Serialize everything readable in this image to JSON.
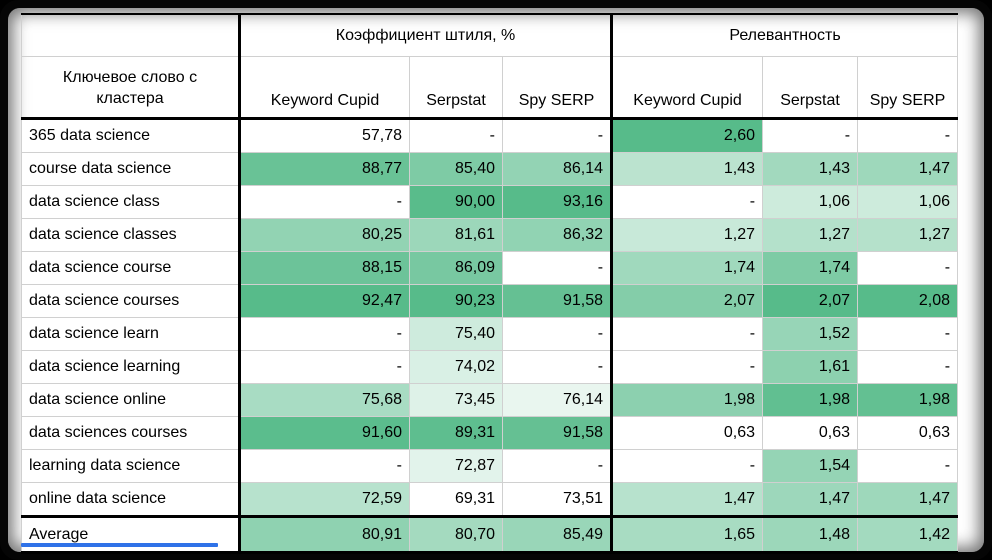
{
  "table": {
    "corner_header": "Ключевое слово с кластера",
    "groups": [
      {
        "title": "Коэффициент штиля, %",
        "columns": [
          "Keyword Cupid",
          "Serpstat",
          "Spy SERP"
        ]
      },
      {
        "title": "Релевантность",
        "columns": [
          "Keyword Cupid",
          "Serpstat",
          "Spy SERP"
        ]
      }
    ],
    "columns_flat": [
      "Keyword Cupid",
      "Serpstat",
      "Spy SERP",
      "Keyword Cupid",
      "Serpstat",
      "Spy SERP"
    ],
    "missing_placeholder": "-",
    "rows": [
      {
        "label": "365 data science",
        "values": [
          "57,78",
          "-",
          "-",
          "2,60",
          "-",
          "-"
        ]
      },
      {
        "label": "course data science",
        "values": [
          "88,77",
          "85,40",
          "86,14",
          "1,43",
          "1,43",
          "1,47"
        ]
      },
      {
        "label": "data science class",
        "values": [
          "-",
          "90,00",
          "93,16",
          "-",
          "1,06",
          "1,06"
        ]
      },
      {
        "label": "data science classes",
        "values": [
          "80,25",
          "81,61",
          "86,32",
          "1,27",
          "1,27",
          "1,27"
        ]
      },
      {
        "label": "data science course",
        "values": [
          "88,15",
          "86,09",
          "-",
          "1,74",
          "1,74",
          "-"
        ]
      },
      {
        "label": "data science courses",
        "values": [
          "92,47",
          "90,23",
          "91,58",
          "2,07",
          "2,07",
          "2,08"
        ]
      },
      {
        "label": "data science learn",
        "values": [
          "-",
          "75,40",
          "-",
          "-",
          "1,52",
          "-"
        ]
      },
      {
        "label": "data science learning",
        "values": [
          "-",
          "74,02",
          "-",
          "-",
          "1,61",
          "-"
        ]
      },
      {
        "label": "data science online",
        "values": [
          "75,68",
          "73,45",
          "76,14",
          "1,98",
          "1,98",
          "1,98"
        ]
      },
      {
        "label": "data sciences courses",
        "values": [
          "91,60",
          "89,31",
          "91,58",
          "0,63",
          "0,63",
          "0,63"
        ]
      },
      {
        "label": "learning data science",
        "values": [
          "-",
          "72,87",
          "-",
          "-",
          "1,54",
          "-"
        ]
      },
      {
        "label": "online data science",
        "values": [
          "72,59",
          "69,31",
          "73,51",
          "1,47",
          "1,47",
          "1,47"
        ]
      }
    ],
    "average_row": {
      "label": "Average",
      "values": [
        "80,91",
        "80,70",
        "85,49",
        "1,65",
        "1,48",
        "1,42"
      ]
    }
  },
  "heatmap": {
    "min_color": "#ffffff",
    "max_color": "#57bb8a"
  },
  "colors": {
    "grid_line": "#d0d0d0",
    "heavy_border": "#000000",
    "text": "#000000",
    "sheet_background": "#ffffff",
    "frame_background": "#050505",
    "selection_line": "#2f72e8"
  }
}
